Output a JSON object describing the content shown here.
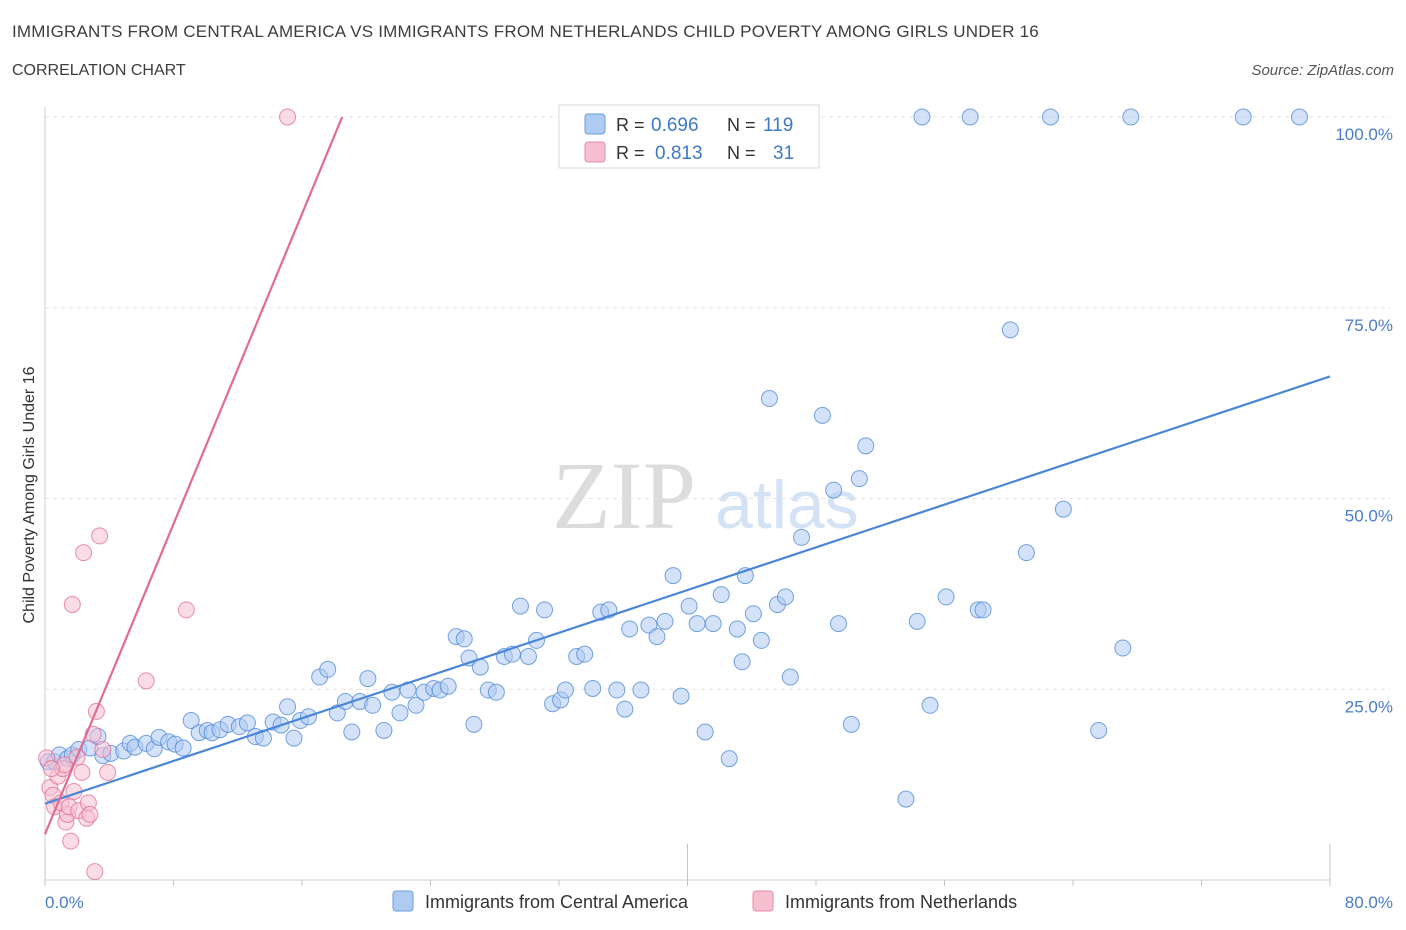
{
  "header": {
    "title": "IMMIGRANTS FROM CENTRAL AMERICA VS IMMIGRANTS FROM NETHERLANDS CHILD POVERTY AMONG GIRLS UNDER 16",
    "subtitle": "CORRELATION CHART",
    "source": "Source: ZipAtlas.com"
  },
  "watermark": {
    "zip": "ZIP",
    "atlas": "atlas"
  },
  "legend_box": {
    "rows": [
      {
        "r_label": "R =",
        "r_value": "0.696",
        "n_label": "N =",
        "n_value": "119",
        "color": "#aecbf2"
      },
      {
        "r_label": "R =",
        "r_value": "0.813",
        "n_label": "N =",
        "n_value": "31",
        "color": "#f6bfd0"
      }
    ]
  },
  "chart_data": {
    "type": "scatter",
    "title": "IMMIGRANTS FROM CENTRAL AMERICA VS IMMIGRANTS FROM NETHERLANDS CHILD POVERTY AMONG GIRLS UNDER 16",
    "subtitle": "CORRELATION CHART",
    "xlabel": "",
    "ylabel": "Child Poverty Among Girls Under 16",
    "xlim": [
      0,
      80
    ],
    "ylim": [
      0,
      100
    ],
    "x_tick_labels": [
      "0.0%",
      "80.0%"
    ],
    "y_tick_labels": [
      "25.0%",
      "50.0%",
      "75.0%",
      "100.0%"
    ],
    "y_tick_values": [
      25,
      50,
      75,
      100
    ],
    "grid": true,
    "legend_position": "bottom-center",
    "series": [
      {
        "name": "Immigrants from Central America",
        "color": "#4a86d8",
        "fill": "#aecbf2",
        "R": 0.696,
        "N": 119,
        "trendline": {
          "x": [
            0,
            80
          ],
          "y": [
            10,
            66
          ]
        },
        "points": [
          [
            0.2,
            15.5
          ],
          [
            0.6,
            15.5
          ],
          [
            0.9,
            16.4
          ],
          [
            1.4,
            15.9
          ],
          [
            1.7,
            16.4
          ],
          [
            2.1,
            17.1
          ],
          [
            2.8,
            17.3
          ],
          [
            3.3,
            18.8
          ],
          [
            3.6,
            16.3
          ],
          [
            4.1,
            16.6
          ],
          [
            4.9,
            16.9
          ],
          [
            5.3,
            17.9
          ],
          [
            5.6,
            17.4
          ],
          [
            6.3,
            17.9
          ],
          [
            6.8,
            17.2
          ],
          [
            7.1,
            18.7
          ],
          [
            7.7,
            18.1
          ],
          [
            8.1,
            17.8
          ],
          [
            8.6,
            17.3
          ],
          [
            9.1,
            20.9
          ],
          [
            9.6,
            19.3
          ],
          [
            10.1,
            19.6
          ],
          [
            10.4,
            19.3
          ],
          [
            10.9,
            19.7
          ],
          [
            11.4,
            20.4
          ],
          [
            12.1,
            20.1
          ],
          [
            12.6,
            20.6
          ],
          [
            13.1,
            18.8
          ],
          [
            13.6,
            18.6
          ],
          [
            14.2,
            20.7
          ],
          [
            14.7,
            20.3
          ],
          [
            15.1,
            22.7
          ],
          [
            15.5,
            18.6
          ],
          [
            15.9,
            20.9
          ],
          [
            16.4,
            21.4
          ],
          [
            17.1,
            26.6
          ],
          [
            17.6,
            27.6
          ],
          [
            18.2,
            21.9
          ],
          [
            18.7,
            23.4
          ],
          [
            19.1,
            19.4
          ],
          [
            19.6,
            23.4
          ],
          [
            20.1,
            26.4
          ],
          [
            20.4,
            22.9
          ],
          [
            21.1,
            19.6
          ],
          [
            21.6,
            24.6
          ],
          [
            22.1,
            21.9
          ],
          [
            22.6,
            24.9
          ],
          [
            23.1,
            22.9
          ],
          [
            23.6,
            24.6
          ],
          [
            24.2,
            25.1
          ],
          [
            24.6,
            24.9
          ],
          [
            25.1,
            25.4
          ],
          [
            25.6,
            31.9
          ],
          [
            26.1,
            31.6
          ],
          [
            26.4,
            29.1
          ],
          [
            26.7,
            20.4
          ],
          [
            27.1,
            27.9
          ],
          [
            27.6,
            24.9
          ],
          [
            28.1,
            24.6
          ],
          [
            28.6,
            29.3
          ],
          [
            29.1,
            29.6
          ],
          [
            29.6,
            35.9
          ],
          [
            30.1,
            29.3
          ],
          [
            30.6,
            31.4
          ],
          [
            31.1,
            35.4
          ],
          [
            31.6,
            23.1
          ],
          [
            32.1,
            23.6
          ],
          [
            32.4,
            24.9
          ],
          [
            33.1,
            29.3
          ],
          [
            33.6,
            29.6
          ],
          [
            34.1,
            25.1
          ],
          [
            34.6,
            35.1
          ],
          [
            35.1,
            35.4
          ],
          [
            35.6,
            24.9
          ],
          [
            36.1,
            22.4
          ],
          [
            36.4,
            32.9
          ],
          [
            37.1,
            24.9
          ],
          [
            37.6,
            33.4
          ],
          [
            38.1,
            31.9
          ],
          [
            38.6,
            33.9
          ],
          [
            39.1,
            39.9
          ],
          [
            39.6,
            24.1
          ],
          [
            40.1,
            35.9
          ],
          [
            40.6,
            33.6
          ],
          [
            41.1,
            19.4
          ],
          [
            41.6,
            33.6
          ],
          [
            42.1,
            37.4
          ],
          [
            42.6,
            15.9
          ],
          [
            43.1,
            32.9
          ],
          [
            43.4,
            28.6
          ],
          [
            43.6,
            39.9
          ],
          [
            44.1,
            34.9
          ],
          [
            44.6,
            31.4
          ],
          [
            45.1,
            63.1
          ],
          [
            45.6,
            36.1
          ],
          [
            46.1,
            37.1
          ],
          [
            46.4,
            26.6
          ],
          [
            47.1,
            44.9
          ],
          [
            48.4,
            60.9
          ],
          [
            49.1,
            51.1
          ],
          [
            49.4,
            33.6
          ],
          [
            50.2,
            20.4
          ],
          [
            50.7,
            52.6
          ],
          [
            51.1,
            56.9
          ],
          [
            53.6,
            10.6
          ],
          [
            54.3,
            33.9
          ],
          [
            55.1,
            22.9
          ],
          [
            56.1,
            37.1
          ],
          [
            58.1,
            35.4
          ],
          [
            58.4,
            35.4
          ],
          [
            60.1,
            72.1
          ],
          [
            61.1,
            42.9
          ],
          [
            63.4,
            48.6
          ],
          [
            65.6,
            19.6
          ],
          [
            67.1,
            30.4
          ],
          [
            54.6,
            100
          ],
          [
            57.6,
            100
          ],
          [
            62.6,
            100
          ],
          [
            67.6,
            100
          ],
          [
            74.6,
            100
          ],
          [
            78.1,
            100
          ]
        ]
      },
      {
        "name": "Immigrants from Netherlands",
        "color": "#e06b97",
        "fill": "#f6bfd0",
        "R": 0.813,
        "N": 31,
        "trendline": {
          "x": [
            0,
            18.5
          ],
          "y": [
            6,
            100
          ]
        },
        "points": [
          [
            0.1,
            16.0
          ],
          [
            0.3,
            12.1
          ],
          [
            0.5,
            11.1
          ],
          [
            0.6,
            9.6
          ],
          [
            0.8,
            13.6
          ],
          [
            1.0,
            10.1
          ],
          [
            1.1,
            14.6
          ],
          [
            1.2,
            15.1
          ],
          [
            1.3,
            7.6
          ],
          [
            1.4,
            8.6
          ],
          [
            1.5,
            9.6
          ],
          [
            1.6,
            5.1
          ],
          [
            1.7,
            36.1
          ],
          [
            1.8,
            11.6
          ],
          [
            2.0,
            16.1
          ],
          [
            2.1,
            9.1
          ],
          [
            2.3,
            14.1
          ],
          [
            2.4,
            42.9
          ],
          [
            2.6,
            8.1
          ],
          [
            2.7,
            10.1
          ],
          [
            2.8,
            8.6
          ],
          [
            3.0,
            19.1
          ],
          [
            3.1,
            1.1
          ],
          [
            3.2,
            22.1
          ],
          [
            3.4,
            45.1
          ],
          [
            3.6,
            17.1
          ],
          [
            3.9,
            14.1
          ],
          [
            6.3,
            26.1
          ],
          [
            8.8,
            35.4
          ],
          [
            15.1,
            100
          ],
          [
            0.4,
            14.6
          ]
        ]
      }
    ]
  },
  "legend_bottom": [
    {
      "label": "Immigrants from Central America",
      "color": "#aecbf2"
    },
    {
      "label": "Immigrants from Netherlands",
      "color": "#f6bfd0"
    }
  ]
}
